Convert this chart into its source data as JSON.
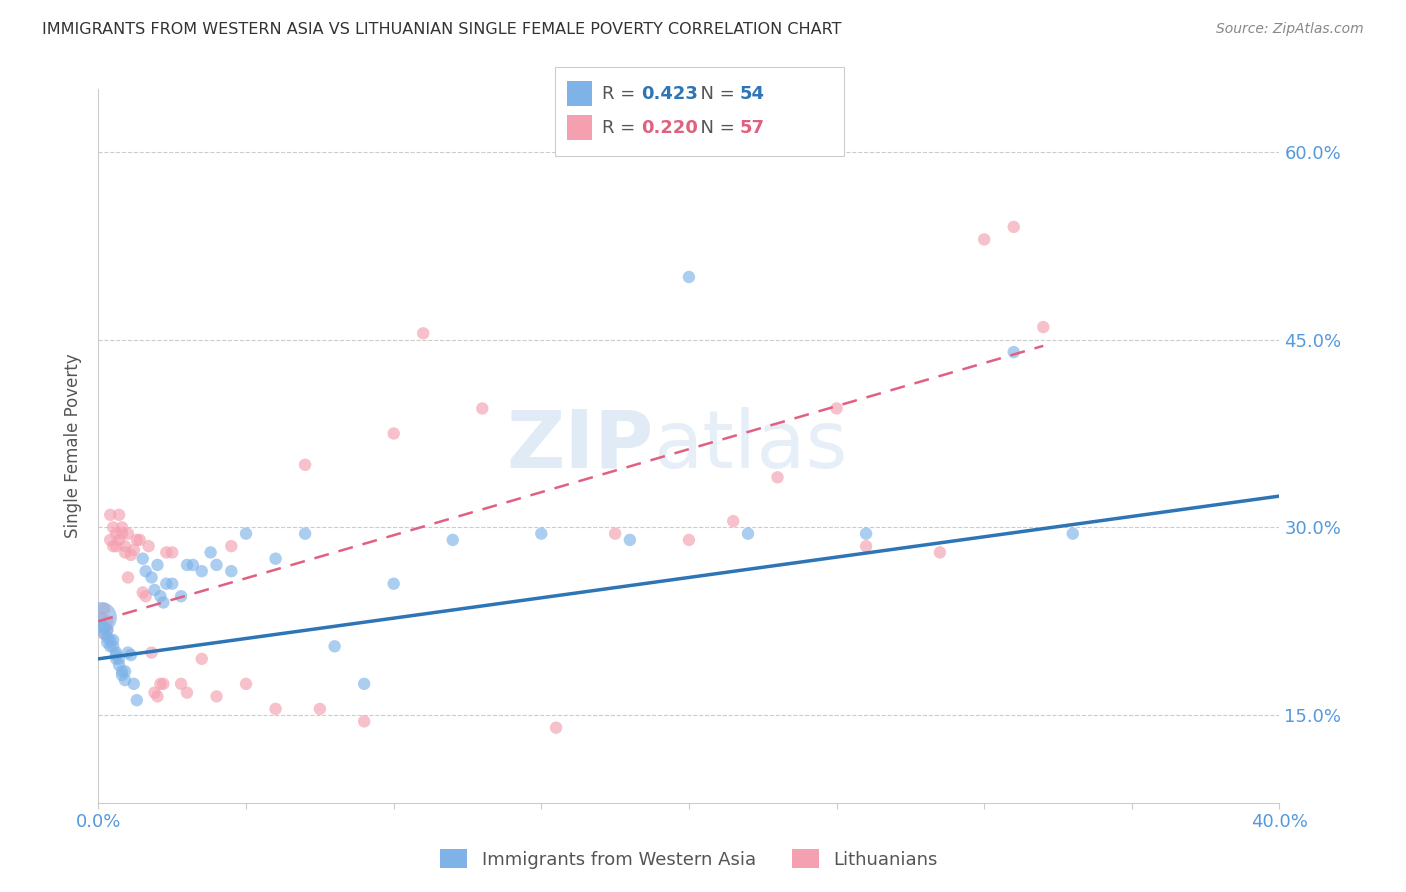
{
  "title": "IMMIGRANTS FROM WESTERN ASIA VS LITHUANIAN SINGLE FEMALE POVERTY CORRELATION CHART",
  "source": "Source: ZipAtlas.com",
  "ylabel": "Single Female Poverty",
  "legend_label1": "Immigrants from Western Asia",
  "legend_label2": "Lithuanians",
  "R1": 0.423,
  "N1": 54,
  "R2": 0.22,
  "N2": 57,
  "color_blue": "#7FB3E8",
  "color_pink": "#F4A0B0",
  "color_blue_line": "#2E75B6",
  "color_pink_line": "#E06080",
  "xlim": [
    0.0,
    0.4
  ],
  "ylim": [
    0.08,
    0.65
  ],
  "ytick_labels": [
    "15.0%",
    "30.0%",
    "45.0%",
    "60.0%"
  ],
  "ytick_values": [
    0.15,
    0.3,
    0.45,
    0.6
  ],
  "watermark_zip": "ZIP",
  "watermark_atlas": "atlas",
  "blue_x": [
    0.001,
    0.001,
    0.002,
    0.002,
    0.003,
    0.003,
    0.003,
    0.004,
    0.004,
    0.005,
    0.005,
    0.006,
    0.006,
    0.006,
    0.007,
    0.007,
    0.008,
    0.008,
    0.009,
    0.009,
    0.01,
    0.011,
    0.012,
    0.013,
    0.015,
    0.016,
    0.018,
    0.019,
    0.02,
    0.021,
    0.022,
    0.023,
    0.025,
    0.028,
    0.03,
    0.032,
    0.035,
    0.038,
    0.04,
    0.045,
    0.05,
    0.06,
    0.07,
    0.08,
    0.09,
    0.1,
    0.12,
    0.15,
    0.18,
    0.2,
    0.22,
    0.26,
    0.31,
    0.33
  ],
  "blue_y": [
    0.228,
    0.222,
    0.22,
    0.215,
    0.218,
    0.212,
    0.208,
    0.21,
    0.205,
    0.21,
    0.205,
    0.2,
    0.198,
    0.195,
    0.195,
    0.19,
    0.185,
    0.182,
    0.185,
    0.178,
    0.2,
    0.198,
    0.175,
    0.162,
    0.275,
    0.265,
    0.26,
    0.25,
    0.27,
    0.245,
    0.24,
    0.255,
    0.255,
    0.245,
    0.27,
    0.27,
    0.265,
    0.28,
    0.27,
    0.265,
    0.295,
    0.275,
    0.295,
    0.205,
    0.175,
    0.255,
    0.29,
    0.295,
    0.29,
    0.5,
    0.295,
    0.295,
    0.44,
    0.295
  ],
  "blue_size": [
    500,
    80,
    80,
    80,
    80,
    80,
    80,
    80,
    80,
    80,
    80,
    80,
    80,
    80,
    80,
    80,
    80,
    80,
    80,
    80,
    80,
    80,
    80,
    80,
    80,
    80,
    80,
    80,
    80,
    80,
    80,
    80,
    80,
    80,
    80,
    80,
    80,
    80,
    80,
    80,
    80,
    80,
    80,
    80,
    80,
    80,
    80,
    80,
    80,
    80,
    80,
    80,
    80,
    80
  ],
  "pink_x": [
    0.001,
    0.002,
    0.002,
    0.003,
    0.003,
    0.004,
    0.004,
    0.005,
    0.005,
    0.006,
    0.006,
    0.007,
    0.007,
    0.008,
    0.008,
    0.009,
    0.009,
    0.01,
    0.01,
    0.011,
    0.012,
    0.013,
    0.014,
    0.015,
    0.016,
    0.017,
    0.018,
    0.019,
    0.02,
    0.021,
    0.022,
    0.023,
    0.025,
    0.028,
    0.03,
    0.035,
    0.04,
    0.045,
    0.05,
    0.06,
    0.07,
    0.075,
    0.09,
    0.1,
    0.11,
    0.13,
    0.155,
    0.175,
    0.2,
    0.215,
    0.23,
    0.25,
    0.26,
    0.285,
    0.3,
    0.31,
    0.32
  ],
  "pink_y": [
    0.228,
    0.235,
    0.215,
    0.225,
    0.218,
    0.31,
    0.29,
    0.3,
    0.285,
    0.295,
    0.285,
    0.29,
    0.31,
    0.3,
    0.295,
    0.285,
    0.28,
    0.26,
    0.295,
    0.278,
    0.282,
    0.29,
    0.29,
    0.248,
    0.245,
    0.285,
    0.2,
    0.168,
    0.165,
    0.175,
    0.175,
    0.28,
    0.28,
    0.175,
    0.168,
    0.195,
    0.165,
    0.285,
    0.175,
    0.155,
    0.35,
    0.155,
    0.145,
    0.375,
    0.455,
    0.395,
    0.14,
    0.295,
    0.29,
    0.305,
    0.34,
    0.395,
    0.285,
    0.28,
    0.53,
    0.54,
    0.46
  ],
  "pink_size": [
    80,
    80,
    80,
    80,
    80,
    80,
    80,
    80,
    80,
    80,
    80,
    80,
    80,
    80,
    80,
    80,
    80,
    80,
    80,
    80,
    80,
    80,
    80,
    80,
    80,
    80,
    80,
    80,
    80,
    80,
    80,
    80,
    80,
    80,
    80,
    80,
    80,
    80,
    80,
    80,
    80,
    80,
    80,
    80,
    80,
    80,
    80,
    80,
    80,
    80,
    80,
    80,
    80,
    80,
    80,
    80,
    80
  ],
  "blue_trend_x0": 0.0,
  "blue_trend_x1": 0.4,
  "blue_trend_y0": 0.195,
  "blue_trend_y1": 0.325,
  "pink_trend_x0": 0.0,
  "pink_trend_x1": 0.32,
  "pink_trend_y0": 0.225,
  "pink_trend_y1": 0.445,
  "grid_color": "#CCCCCC",
  "tick_color": "#5599DD",
  "background": "#FFFFFF"
}
